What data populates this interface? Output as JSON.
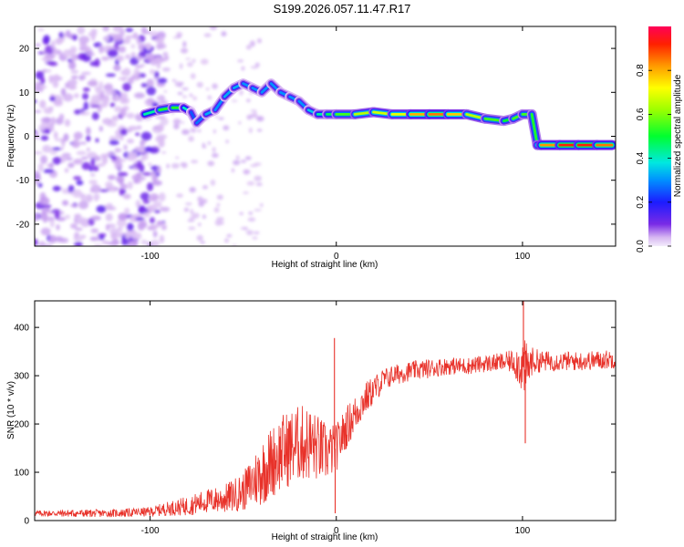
{
  "title": "S199.2026.057.11.47.R17",
  "chart_data": [
    {
      "type": "heatmap",
      "xlabel": "Height of straight line (km)",
      "ylabel": "Frequency (Hz)",
      "xlim": [
        -162,
        150
      ],
      "ylim": [
        -25,
        25
      ],
      "xticks": [
        -100,
        0,
        100
      ],
      "yticks": [
        -20,
        -10,
        0,
        10,
        20
      ],
      "colorbar": {
        "label": "Normalized spectral amplitude",
        "range": [
          0,
          1
        ],
        "ticks": [
          0.0,
          0.2,
          0.4,
          0.6,
          0.8
        ]
      },
      "ridge": {
        "x": [
          -103,
          -95,
          -88,
          -82,
          -78,
          -75,
          -70,
          -65,
          -60,
          -55,
          -50,
          -45,
          -40,
          -35,
          -30,
          -25,
          -20,
          -15,
          -10,
          -5,
          0,
          10,
          20,
          30,
          40,
          50,
          60,
          70,
          80,
          90,
          95,
          100,
          105,
          108,
          110,
          120,
          130,
          140,
          148
        ],
        "y": [
          5,
          6,
          6.5,
          6.5,
          5.5,
          3,
          5,
          6,
          9,
          11,
          12,
          11,
          10,
          12,
          10,
          9,
          8,
          6,
          5,
          5,
          5,
          5,
          5.5,
          5,
          5,
          5,
          5,
          5,
          4,
          3.5,
          4,
          5,
          5,
          -2,
          -2,
          -2,
          -2,
          -2,
          -2
        ]
      },
      "ridge_strength": [
        0.35,
        0.5,
        0.55,
        0.5,
        0.3,
        0.2,
        0.35,
        0.3,
        0.3,
        0.35,
        0.3,
        0.3,
        0.3,
        0.3,
        0.3,
        0.3,
        0.3,
        0.3,
        0.4,
        0.45,
        0.5,
        0.6,
        0.7,
        0.65,
        0.75,
        0.85,
        0.85,
        0.7,
        0.6,
        0.5,
        0.5,
        0.6,
        0.5,
        0.55,
        0.75,
        0.9,
        0.95,
        0.9,
        0.8
      ]
    },
    {
      "type": "line",
      "xlabel": "Height of straight line (km)",
      "ylabel": "SNR (10 * v/v)",
      "xlim": [
        -162,
        150
      ],
      "ylim": [
        0,
        455
      ],
      "xticks": [
        -100,
        0,
        100
      ],
      "yticks": [
        0,
        100,
        200,
        300,
        400
      ],
      "series": [
        {
          "name": "SNR",
          "color": "#e8322a",
          "x": [
            -162,
            -140,
            -120,
            -100,
            -90,
            -80,
            -70,
            -60,
            -50,
            -45,
            -40,
            -35,
            -30,
            -25,
            -20,
            -15,
            -10,
            -5,
            0,
            5,
            10,
            15,
            20,
            25,
            30,
            40,
            50,
            60,
            70,
            80,
            90,
            95,
            100,
            102,
            105,
            110,
            120,
            130,
            140,
            150
          ],
          "y": [
            15,
            15,
            15,
            18,
            25,
            30,
            40,
            45,
            60,
            80,
            100,
            120,
            140,
            150,
            160,
            160,
            150,
            140,
            150,
            190,
            220,
            250,
            270,
            290,
            300,
            310,
            315,
            320,
            320,
            325,
            328,
            330,
            320,
            310,
            330,
            330,
            330,
            330,
            332,
            335
          ],
          "noise": [
            6,
            8,
            8,
            10,
            15,
            20,
            25,
            30,
            40,
            55,
            70,
            75,
            80,
            80,
            80,
            80,
            70,
            60,
            50,
            45,
            40,
            35,
            30,
            25,
            22,
            20,
            20,
            18,
            18,
            18,
            20,
            25,
            60,
            60,
            30,
            22,
            20,
            20,
            20,
            20
          ]
        }
      ],
      "spikes": [
        {
          "x": -1,
          "y": 378
        },
        {
          "x": -0.6,
          "y": 15
        },
        {
          "x": 100.5,
          "y": 455
        },
        {
          "x": 101.5,
          "y": 160
        }
      ]
    }
  ]
}
